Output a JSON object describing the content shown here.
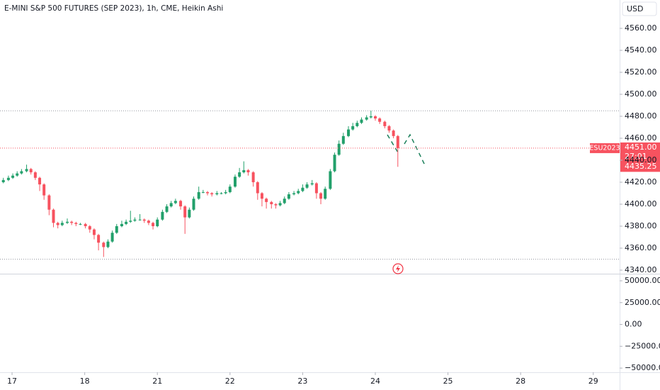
{
  "chart_data": {
    "type": "candlestick",
    "title": "E-MINI S&P 500 FUTURES (SEP 2023), 1h, CME, Heikin Ashi",
    "currency": "USD",
    "up_color": "#22a06b",
    "down_color": "#f7525f",
    "grid": false,
    "xlim": [
      -0.166,
      8.363
    ],
    "xticks": [
      {
        "value": 0,
        "label": "17"
      },
      {
        "value": 1,
        "label": "18"
      },
      {
        "value": 2,
        "label": "21"
      },
      {
        "value": 3,
        "label": "22"
      },
      {
        "value": 4,
        "label": "23"
      },
      {
        "value": 5,
        "label": "24"
      },
      {
        "value": 6,
        "label": "25"
      },
      {
        "value": 7,
        "label": "28"
      },
      {
        "value": 8,
        "label": "29"
      }
    ],
    "ylim": [
      4337.4,
      4585.8
    ],
    "yticks": [
      {
        "value": 4340,
        "label": "4340.00"
      },
      {
        "value": 4360,
        "label": "4360.00"
      },
      {
        "value": 4380,
        "label": "4380.00"
      },
      {
        "value": 4400,
        "label": "4400.00"
      },
      {
        "value": 4420,
        "label": "4420.00"
      },
      {
        "value": 4440,
        "label": "4440.00"
      },
      {
        "value": 4460,
        "label": "4460.00"
      },
      {
        "value": 4480,
        "label": "4480.00"
      },
      {
        "value": 4500,
        "label": "4500.00"
      },
      {
        "value": 4520,
        "label": "4520.00"
      },
      {
        "value": 4540,
        "label": "4540.00"
      },
      {
        "value": 4560,
        "label": "4560.00"
      }
    ],
    "price_lines": [
      4485,
      4350
    ],
    "symbol_tag": "ESU2023",
    "last_price": {
      "value": 4451,
      "label": "4451.00"
    },
    "countdown": "27:01",
    "ha_close": {
      "value": 4435.25,
      "label": "4435.25"
    },
    "x": [
      -0.12,
      -0.05,
      0.01,
      0.07,
      0.13,
      0.2,
      0.26,
      0.32,
      0.38,
      0.44,
      0.51,
      0.57,
      0.63,
      0.69,
      0.76,
      0.82,
      0.88,
      0.94,
      1.01,
      1.07,
      1.13,
      1.19,
      1.26,
      1.32,
      1.38,
      1.44,
      1.51,
      1.57,
      1.63,
      1.69,
      1.76,
      1.82,
      1.88,
      1.94,
      2.0,
      2.07,
      2.13,
      2.19,
      2.25,
      2.32,
      2.38,
      2.44,
      2.5,
      2.57,
      2.63,
      2.69,
      2.75,
      2.82,
      2.88,
      2.94,
      3.0,
      3.07,
      3.13,
      3.19,
      3.25,
      3.32,
      3.38,
      3.44,
      3.5,
      3.57,
      3.63,
      3.69,
      3.75,
      3.81,
      3.88,
      3.94,
      4.0,
      4.06,
      4.13,
      4.19,
      4.25,
      4.31,
      4.38,
      4.44,
      4.5,
      4.56,
      4.63,
      4.69,
      4.75,
      4.81,
      4.88,
      4.94,
      5.0,
      5.06,
      5.13,
      5.19,
      5.25,
      5.31
    ],
    "open": [
      4420,
      4422,
      4424,
      4426,
      4428,
      4430,
      4432,
      4429,
      4424,
      4418,
      4408,
      4395,
      4383,
      4381,
      4383,
      4384,
      4383,
      4382,
      4382,
      4380,
      4377,
      4372,
      4365,
      4361,
      4366,
      4374,
      4380,
      4382,
      4384,
      4385,
      4386,
      4386,
      4385,
      4383,
      4380,
      4386,
      4393,
      4398,
      4401,
      4403,
      4398,
      4388,
      4395,
      4405,
      4411,
      4411,
      4410,
      4409,
      4410,
      4410,
      4411,
      4416,
      4425,
      4429,
      4431,
      4429,
      4420,
      4410,
      4405,
      4402,
      4400,
      4399,
      4401,
      4405,
      4409,
      4410,
      4412,
      4415,
      4418,
      4419,
      4410,
      4405,
      4414,
      4430,
      4445,
      4455,
      4462,
      4468,
      4471,
      4474,
      4477,
      4479,
      4480,
      4478,
      4475,
      4471,
      4467,
      4462
    ],
    "high": [
      4424,
      4426,
      4428,
      4430,
      4432,
      4436,
      4433,
      4430,
      4425,
      4419,
      4409,
      4396,
      4384,
      4385,
      4387,
      4385,
      4384,
      4383,
      4383,
      4381,
      4378,
      4373,
      4366,
      4368,
      4376,
      4382,
      4385,
      4386,
      4394,
      4388,
      4391,
      4387,
      4386,
      4384,
      4388,
      4395,
      4400,
      4403,
      4405,
      4404,
      4399,
      4397,
      4407,
      4416,
      4413,
      4412,
      4411,
      4412,
      4411,
      4413,
      4418,
      4427,
      4433,
      4439,
      4432,
      4430,
      4421,
      4411,
      4406,
      4403,
      4401,
      4403,
      4407,
      4411,
      4412,
      4414,
      4418,
      4420,
      4422,
      4420,
      4411,
      4416,
      4432,
      4447,
      4458,
      4465,
      4471,
      4474,
      4476,
      4479,
      4481,
      4485,
      4481,
      4479,
      4476,
      4472,
      4468,
      4463
    ],
    "low": [
      4419,
      4421,
      4423,
      4425,
      4427,
      4429,
      4427,
      4422,
      4412,
      4404,
      4390,
      4379,
      4378,
      4380,
      4382,
      4381,
      4380,
      4381,
      4378,
      4374,
      4368,
      4358,
      4352,
      4360,
      4365,
      4373,
      4379,
      4381,
      4383,
      4384,
      4385,
      4383,
      4381,
      4377,
      4379,
      4385,
      4392,
      4397,
      4400,
      4395,
      4373,
      4387,
      4394,
      4404,
      4410,
      4408,
      4407,
      4408,
      4409,
      4409,
      4410,
      4415,
      4424,
      4428,
      4426,
      4416,
      4404,
      4398,
      4396,
      4396,
      4396,
      4398,
      4400,
      4404,
      4408,
      4409,
      4411,
      4414,
      4417,
      4405,
      4400,
      4404,
      4413,
      4429,
      4444,
      4454,
      4461,
      4467,
      4470,
      4473,
      4476,
      4478,
      4476,
      4473,
      4469,
      4465,
      4460,
      4434
    ],
    "close": [
      4422,
      4424,
      4426,
      4428,
      4430,
      4432,
      4429,
      4424,
      4418,
      4408,
      4395,
      4383,
      4381,
      4383,
      4384,
      4383,
      4382,
      4382,
      4380,
      4377,
      4372,
      4365,
      4361,
      4366,
      4374,
      4380,
      4382,
      4384,
      4385,
      4386,
      4386,
      4385,
      4383,
      4380,
      4386,
      4393,
      4398,
      4401,
      4403,
      4398,
      4388,
      4395,
      4405,
      4411,
      4411,
      4410,
      4409,
      4410,
      4410,
      4411,
      4416,
      4425,
      4429,
      4431,
      4429,
      4420,
      4410,
      4405,
      4402,
      4400,
      4399,
      4401,
      4405,
      4409,
      4410,
      4412,
      4415,
      4418,
      4419,
      4410,
      4405,
      4414,
      4430,
      4445,
      4455,
      4462,
      4468,
      4471,
      4474,
      4477,
      4479,
      4480,
      4478,
      4475,
      4471,
      4467,
      4462,
      4451
    ],
    "lower_pane": {
      "ylim": [
        -54800,
        57300
      ],
      "yticks": [
        {
          "value": -50000,
          "label": "−50000.00"
        },
        {
          "value": -25000,
          "label": "−25000.00"
        },
        {
          "value": 0,
          "label": "0.00"
        },
        {
          "value": 25000,
          "label": "25000.00"
        },
        {
          "value": 50000,
          "label": "50000.00"
        }
      ]
    }
  }
}
